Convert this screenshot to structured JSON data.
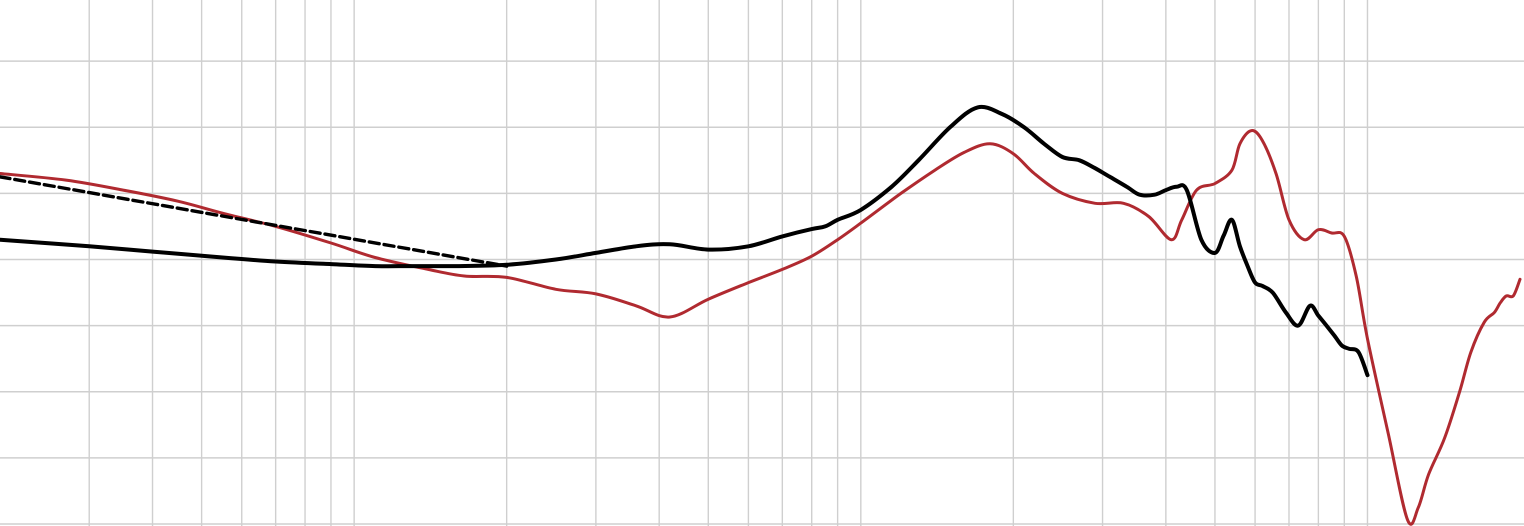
{
  "chart_data": {
    "type": "line",
    "title": "",
    "xlabel": "",
    "ylabel": "",
    "x_scale": "log",
    "xlim": [
      20,
      20000
    ],
    "ylim": [
      0,
      8
    ],
    "grid": true,
    "x_grid": [
      30,
      40,
      50,
      60,
      70,
      80,
      90,
      100,
      200,
      300,
      400,
      500,
      600,
      700,
      800,
      900,
      1000,
      2000,
      3000,
      4000,
      5000,
      6000,
      7000,
      8000,
      9000,
      10000
    ],
    "y_grid": [
      0,
      1,
      2,
      3,
      4,
      5,
      6,
      7,
      8
    ],
    "series": [
      {
        "color": "#b02a30",
        "dash": "",
        "stroke": 3,
        "x": [
          20,
          27,
          35,
          45,
          55,
          70,
          90,
          110,
          140,
          165,
          200,
          250,
          300,
          360,
          420,
          500,
          600,
          700,
          800,
          900,
          1000,
          1200,
          1400,
          1600,
          1800,
          2000,
          2200,
          2500,
          2900,
          3300,
          3700,
          4100,
          4300,
          4600,
          5000,
          5400,
          5600,
          5900,
          6200,
          6600,
          7000,
          7500,
          8000,
          8500,
          9000,
          9500,
          10000,
          11000,
          12000,
          12600,
          13200,
          14200,
          15200,
          16000,
          17000,
          17800,
          18300,
          18800,
          19400,
          20000
        ],
        "y": [
          5.3,
          5.2,
          5.05,
          4.88,
          4.7,
          4.5,
          4.25,
          4.03,
          3.85,
          3.75,
          3.73,
          3.55,
          3.48,
          3.3,
          3.13,
          3.4,
          3.65,
          3.85,
          4.05,
          4.3,
          4.55,
          5.0,
          5.35,
          5.62,
          5.75,
          5.6,
          5.3,
          5.0,
          4.85,
          4.85,
          4.65,
          4.3,
          4.6,
          5.05,
          5.15,
          5.35,
          5.75,
          5.95,
          5.8,
          5.3,
          4.6,
          4.3,
          4.45,
          4.4,
          4.35,
          3.75,
          2.8,
          1.35,
          0.06,
          0.25,
          0.75,
          1.3,
          2.0,
          2.6,
          3.05,
          3.2,
          3.35,
          3.45,
          3.45,
          3.7
        ]
      },
      {
        "color": "#000000",
        "dash": "",
        "stroke": 4,
        "x": [
          20,
          30,
          40,
          55,
          70,
          90,
          110,
          130,
          160,
          200,
          250,
          300,
          360,
          420,
          500,
          600,
          700,
          800,
          850,
          900,
          1000,
          1150,
          1300,
          1500,
          1700,
          1900,
          2100,
          2300,
          2500,
          2700,
          2900,
          3100,
          3350,
          3550,
          3800,
          4000,
          4200,
          4400,
          4700,
          5000,
          5200,
          5400,
          5600,
          5800,
          6000,
          6200,
          6500,
          6900,
          7300,
          7700,
          8000,
          8300,
          8600,
          8900,
          9200,
          9600,
          10000
        ],
        "y": [
          4.3,
          4.2,
          4.12,
          4.03,
          3.97,
          3.93,
          3.9,
          3.9,
          3.9,
          3.92,
          4.0,
          4.1,
          4.2,
          4.23,
          4.15,
          4.2,
          4.35,
          4.46,
          4.5,
          4.6,
          4.75,
          5.1,
          5.5,
          6.0,
          6.3,
          6.2,
          6.0,
          5.75,
          5.55,
          5.5,
          5.38,
          5.25,
          5.1,
          4.98,
          4.98,
          5.05,
          5.1,
          5.05,
          4.3,
          4.1,
          4.36,
          4.6,
          4.2,
          3.9,
          3.65,
          3.6,
          3.5,
          3.2,
          3.0,
          3.3,
          3.15,
          3.0,
          2.85,
          2.7,
          2.65,
          2.6,
          2.25
        ]
      },
      {
        "color": "#000000",
        "dash": "10 5",
        "stroke": 3.4,
        "x": [
          20,
          200
        ],
        "y": [
          5.25,
          3.9
        ]
      }
    ]
  }
}
